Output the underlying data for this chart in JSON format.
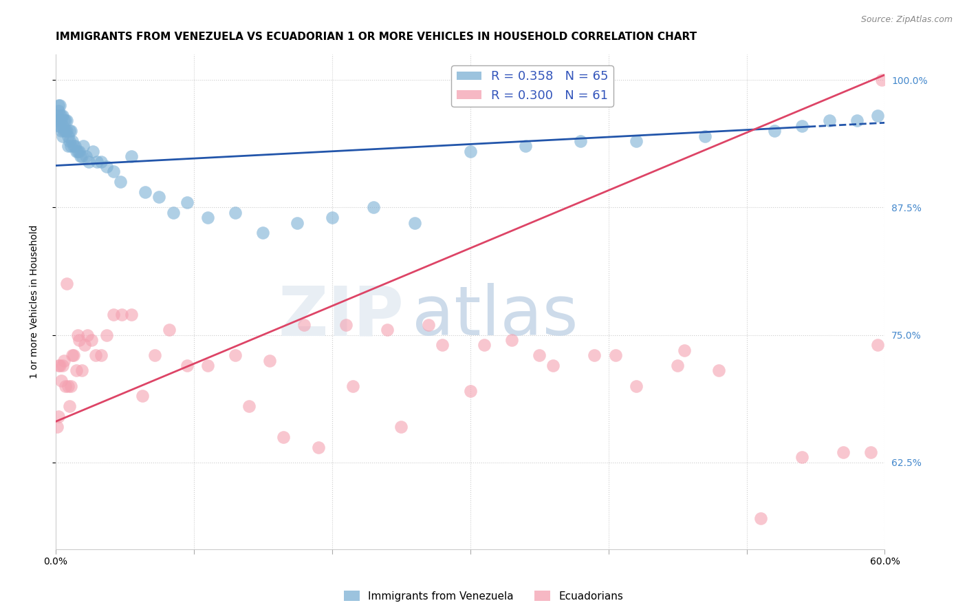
{
  "title": "IMMIGRANTS FROM VENEZUELA VS ECUADORIAN 1 OR MORE VEHICLES IN HOUSEHOLD CORRELATION CHART",
  "source": "Source: ZipAtlas.com",
  "ylabel": "1 or more Vehicles in Household",
  "blue_label": "Immigrants from Venezuela",
  "pink_label": "Ecuadorians",
  "blue_R": 0.358,
  "blue_N": 65,
  "pink_R": 0.3,
  "pink_N": 61,
  "xmin": 0.0,
  "xmax": 0.6,
  "ymin": 0.54,
  "ymax": 1.025,
  "yticks": [
    0.625,
    0.75,
    0.875,
    1.0
  ],
  "ytick_labels": [
    "62.5%",
    "75.0%",
    "87.5%",
    "100.0%"
  ],
  "xticks": [
    0.0,
    0.1,
    0.2,
    0.3,
    0.4,
    0.5,
    0.6
  ],
  "xtick_labels": [
    "0.0%",
    "",
    "",
    "",
    "",
    "",
    "60.0%"
  ],
  "blue_color": "#7BAFD4",
  "pink_color": "#F4A0B0",
  "blue_line_color": "#2255AA",
  "pink_line_color": "#DD4466",
  "title_fontsize": 11,
  "axis_label_fontsize": 10,
  "tick_fontsize": 10,
  "legend_fontsize": 13,
  "blue_line_y0": 0.916,
  "blue_line_y1": 0.958,
  "pink_line_y0": 0.665,
  "pink_line_y1": 1.005,
  "blue_x": [
    0.001,
    0.001,
    0.002,
    0.002,
    0.002,
    0.003,
    0.003,
    0.003,
    0.004,
    0.004,
    0.004,
    0.005,
    0.005,
    0.005,
    0.006,
    0.006,
    0.007,
    0.007,
    0.008,
    0.008,
    0.009,
    0.009,
    0.01,
    0.01,
    0.011,
    0.011,
    0.012,
    0.013,
    0.014,
    0.015,
    0.016,
    0.017,
    0.018,
    0.019,
    0.02,
    0.022,
    0.024,
    0.027,
    0.03,
    0.033,
    0.037,
    0.042,
    0.047,
    0.055,
    0.065,
    0.075,
    0.085,
    0.095,
    0.11,
    0.13,
    0.15,
    0.175,
    0.2,
    0.23,
    0.26,
    0.3,
    0.34,
    0.38,
    0.42,
    0.47,
    0.52,
    0.54,
    0.56,
    0.58,
    0.595
  ],
  "blue_y": [
    0.965,
    0.96,
    0.975,
    0.97,
    0.955,
    0.975,
    0.965,
    0.955,
    0.96,
    0.965,
    0.95,
    0.965,
    0.955,
    0.945,
    0.96,
    0.95,
    0.96,
    0.95,
    0.96,
    0.95,
    0.945,
    0.935,
    0.95,
    0.94,
    0.95,
    0.935,
    0.94,
    0.935,
    0.935,
    0.93,
    0.93,
    0.93,
    0.925,
    0.925,
    0.935,
    0.925,
    0.92,
    0.93,
    0.92,
    0.92,
    0.915,
    0.91,
    0.9,
    0.925,
    0.89,
    0.885,
    0.87,
    0.88,
    0.865,
    0.87,
    0.85,
    0.86,
    0.865,
    0.875,
    0.86,
    0.93,
    0.935,
    0.94,
    0.94,
    0.945,
    0.95,
    0.955,
    0.96,
    0.96,
    0.965
  ],
  "pink_x": [
    0.001,
    0.002,
    0.002,
    0.003,
    0.004,
    0.005,
    0.006,
    0.007,
    0.008,
    0.009,
    0.01,
    0.011,
    0.012,
    0.013,
    0.015,
    0.016,
    0.017,
    0.019,
    0.021,
    0.023,
    0.026,
    0.029,
    0.033,
    0.037,
    0.042,
    0.048,
    0.055,
    0.063,
    0.072,
    0.082,
    0.095,
    0.11,
    0.13,
    0.155,
    0.18,
    0.21,
    0.24,
    0.27,
    0.3,
    0.33,
    0.36,
    0.39,
    0.42,
    0.45,
    0.48,
    0.51,
    0.54,
    0.57,
    0.59,
    0.595,
    0.598,
    0.14,
    0.165,
    0.19,
    0.215,
    0.25,
    0.28,
    0.31,
    0.35,
    0.405,
    0.455
  ],
  "pink_y": [
    0.66,
    0.72,
    0.67,
    0.72,
    0.705,
    0.72,
    0.725,
    0.7,
    0.8,
    0.7,
    0.68,
    0.7,
    0.73,
    0.73,
    0.715,
    0.75,
    0.745,
    0.715,
    0.74,
    0.75,
    0.745,
    0.73,
    0.73,
    0.75,
    0.77,
    0.77,
    0.77,
    0.69,
    0.73,
    0.755,
    0.72,
    0.72,
    0.73,
    0.725,
    0.76,
    0.76,
    0.755,
    0.76,
    0.695,
    0.745,
    0.72,
    0.73,
    0.7,
    0.72,
    0.715,
    0.57,
    0.63,
    0.635,
    0.635,
    0.74,
    1.0,
    0.68,
    0.65,
    0.64,
    0.7,
    0.66,
    0.74,
    0.74,
    0.73,
    0.73,
    0.735
  ]
}
